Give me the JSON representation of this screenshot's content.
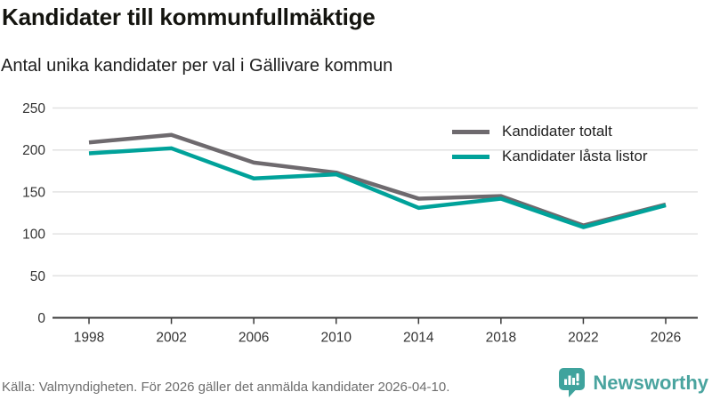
{
  "header": {
    "title": "Kandidater till kommunfullmäktige",
    "subtitle": "Antal unika kandidater per val i Gällivare kommun"
  },
  "chart_data": {
    "type": "line",
    "x": [
      1998,
      2002,
      2006,
      2010,
      2014,
      2018,
      2022,
      2026
    ],
    "series": [
      {
        "name": "Kandidater totalt",
        "color": "#6e6a6e",
        "values": [
          209,
          218,
          185,
          173,
          142,
          145,
          110,
          135
        ]
      },
      {
        "name": "Kandidater låsta listor",
        "color": "#00a29a",
        "values": [
          196,
          202,
          166,
          171,
          131,
          142,
          108,
          134
        ]
      }
    ],
    "ylim": [
      0,
      250
    ],
    "yticks": [
      0,
      50,
      100,
      150,
      200,
      250
    ],
    "grid": true,
    "legend_position": "top-right",
    "colors": {
      "grid": "#e2e2e2",
      "axis": "#3a3a3a",
      "tick_label": "#333333"
    }
  },
  "footer": {
    "source": "Källa: Valmyndigheten. För 2026 gäller det anmälda kandidater 2026-04-10."
  },
  "logo": {
    "text": "Newsworthy",
    "color": "#4aa49f",
    "icon": "newsworthy-speech-bubble-barchart-icon"
  }
}
